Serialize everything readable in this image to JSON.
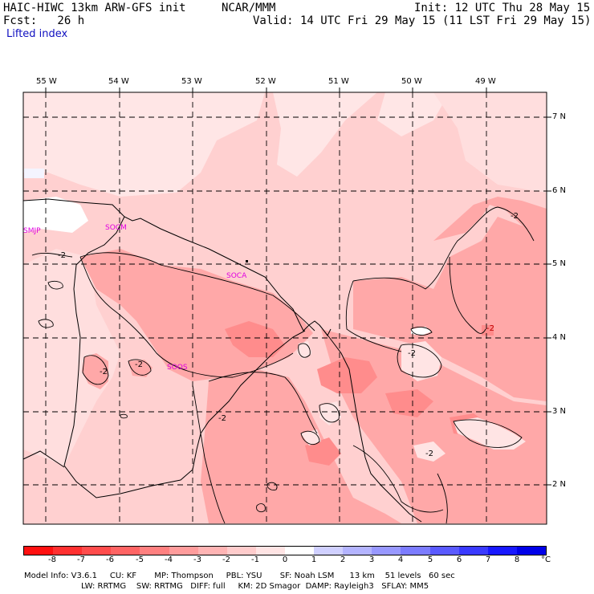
{
  "header": {
    "model": "HAIC-HIWC 13km ARW-GFS init",
    "org": "NCAR/MMM",
    "init": "Init: 12 UTC Thu 28 May 15",
    "fcst": "Fcst:   26 h",
    "valid": "Valid: 14 UTC Fri 29 May 15 (11 LST Fri 29 May 15)",
    "field": "Lifted index"
  },
  "map": {
    "longitudes": [
      "55 W",
      "54 W",
      "53 W",
      "52 W",
      "51 W",
      "50 W",
      "49 W"
    ],
    "latitudes": [
      "7 N",
      "6 N",
      "5 N",
      "4 N",
      "3 N",
      "2 N"
    ],
    "stations": [
      "SMJP",
      "SOCM",
      "SOCA",
      "SOOS"
    ],
    "contour_labels": [
      "-2",
      "-2",
      "-2",
      "-2",
      "-2",
      "-2",
      "-2",
      "-2"
    ]
  },
  "colorbar": {
    "ticks": [
      "-8",
      "-7",
      "-6",
      "-5",
      "-4",
      "-3",
      "-2",
      "-1",
      "0",
      "1",
      "2",
      "3",
      "4",
      "5",
      "6",
      "7",
      "8"
    ],
    "unit": "°C",
    "colors": [
      "#ff1010",
      "#ff3030",
      "#ff4c4c",
      "#ff6464",
      "#ff8080",
      "#ff9c9c",
      "#ffb4b4",
      "#ffcccc",
      "#ffe4e4",
      "#ffffff",
      "#d0d0ff",
      "#b4b4ff",
      "#9898ff",
      "#7c7cff",
      "#5a5aff",
      "#3a3aff",
      "#1818ff",
      "#0000e8"
    ]
  },
  "footer": {
    "line1": "Model Info: V3.6.1     CU: KF       MP: Thompson     PBL: YSU       SF: Noah LSM      13 km    51 levels   60 sec",
    "line2": "LW: RRTMG    SW: RRTMG   DIFF: full     KM: 2D Smagor  DAMP: Rayleigh3   SFLAY: MM5"
  }
}
